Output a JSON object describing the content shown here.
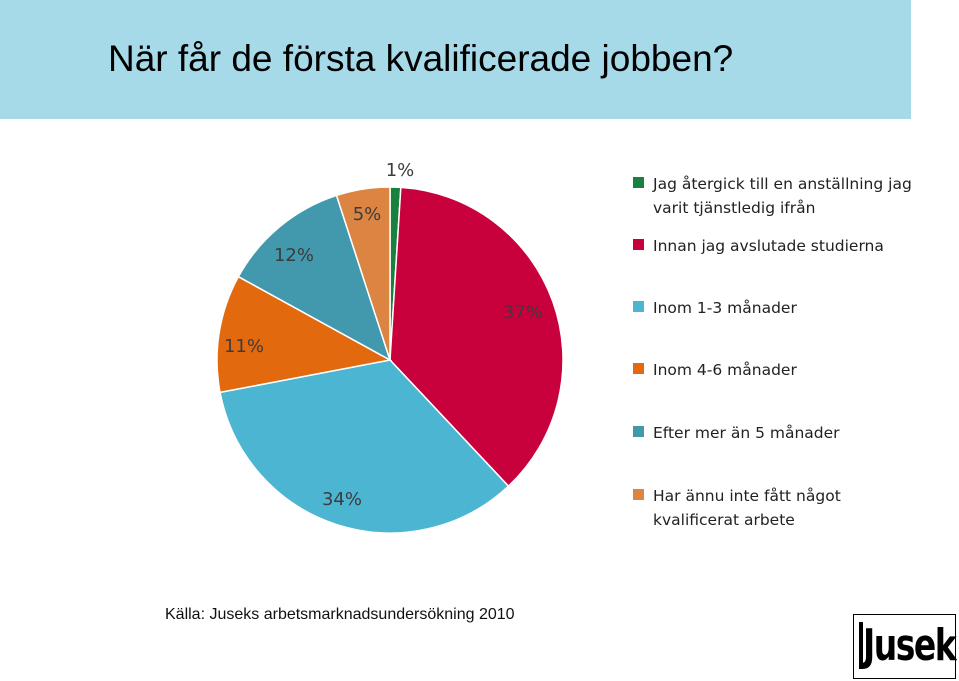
{
  "header": {
    "title": "När får de första kvalificerade jobben?"
  },
  "chart_data": {
    "type": "pie",
    "slices": [
      {
        "label": "Jag återgick till en anställning jag varit tjänstledig ifrån",
        "value": 1,
        "value_label": "1%",
        "color": "#1a8040"
      },
      {
        "label": "Innan jag avslutade studierna",
        "value": 37,
        "value_label": "37%",
        "color": "#c8003c"
      },
      {
        "label": "Inom 1-3 månader",
        "value": 34,
        "value_label": "34%",
        "color": "#4bb5d2"
      },
      {
        "label": "Inom 4-6 månader",
        "value": 11,
        "value_label": "11%",
        "color": "#e3690f"
      },
      {
        "label": "Efter mer än 5 månader",
        "value": 12,
        "value_label": "12%",
        "color": "#4298ad"
      },
      {
        "label": "Har ännu inte fått något kvalificerat arbete",
        "value": 5,
        "value_label": "5%",
        "color": "#dc8542"
      }
    ],
    "legend_position": "right"
  },
  "footer": {
    "source": "Källa: Juseks arbetsmarknadsundersökning 2010"
  },
  "logo": {
    "text": "Jusek"
  }
}
